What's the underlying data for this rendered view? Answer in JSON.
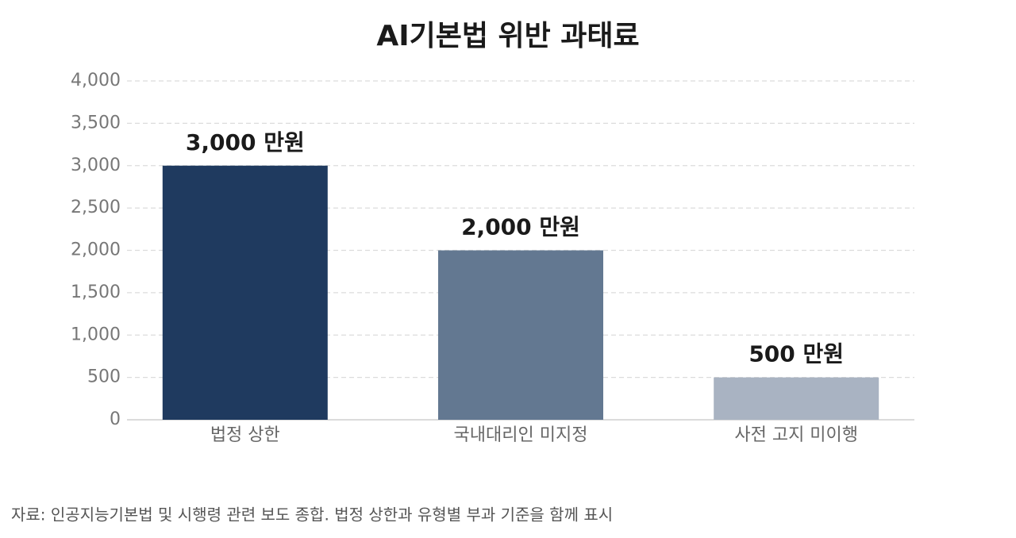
{
  "chart_data": {
    "type": "bar",
    "title": "AI기본법 위반 과태료",
    "categories": [
      "법정 상한",
      "국내대리인 미지정",
      "사전 고지 미이행"
    ],
    "values": [
      3000,
      2000,
      500
    ],
    "value_labels": [
      "3,000 만원",
      "2,000 만원",
      "500 만원"
    ],
    "colors": [
      "#1f3a5f",
      "#637891",
      "#a9b3c2"
    ],
    "ylim": [
      0,
      4000
    ],
    "yticks": [
      0,
      500,
      {
        "value": 1000,
        "label": "1,000"
      },
      {
        "value": 1500,
        "label": "1,500"
      },
      {
        "value": 2000,
        "label": "2,000"
      },
      {
        "value": 2500,
        "label": "2,500"
      },
      {
        "value": 3000,
        "label": "3,000"
      },
      {
        "value": 3500,
        "label": "3,500"
      },
      {
        "value": 4000,
        "label": "4,000"
      }
    ],
    "grid": true,
    "source": "자료: 인공지능기본법 및 시행령 관련 보도 종합. 법정 상한과 유형별 부과 기준을 함께 표시"
  }
}
